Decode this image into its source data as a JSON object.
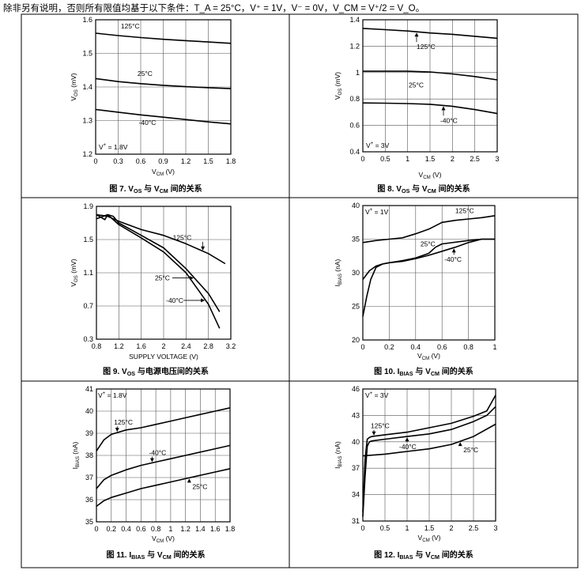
{
  "header": {
    "text": "除非另有说明，否则所有限值均基于以下条件：T_A = 25°C，V⁺ = 1V，V⁻ = 0V，V_CM = V⁺/2 = V_O。"
  },
  "chart_data": [
    {
      "type": "line",
      "caption": "图 7. V_OS 与 V_CM 间的关系",
      "xlabel": "V_CM (V)",
      "ylabel": "V_OS (mV)",
      "xlim": [
        0,
        1.8
      ],
      "ylim": [
        1.2,
        1.6
      ],
      "xticks": [
        "0",
        "0.3",
        "0.6",
        "0.9",
        "1.2",
        "1.5",
        "1.8"
      ],
      "yticks": [
        "1.2",
        "1.3",
        "1.4",
        "1.5",
        "1.6"
      ],
      "condition": "V⁺ = 1.8V",
      "series": [
        {
          "name": "125°C",
          "x": [
            0,
            0.3,
            0.6,
            0.9,
            1.2,
            1.5,
            1.8
          ],
          "y": [
            1.56,
            1.553,
            1.547,
            1.542,
            1.538,
            1.534,
            1.53
          ]
        },
        {
          "name": "25°C",
          "x": [
            0,
            0.3,
            0.6,
            0.9,
            1.2,
            1.5,
            1.8
          ],
          "y": [
            1.425,
            1.416,
            1.41,
            1.405,
            1.401,
            1.398,
            1.395
          ]
        },
        {
          "name": "-40°C",
          "x": [
            0,
            0.3,
            0.6,
            0.9,
            1.2,
            1.5,
            1.8
          ],
          "y": [
            1.333,
            1.325,
            1.317,
            1.31,
            1.303,
            1.296,
            1.29
          ]
        }
      ],
      "annotations": [
        {
          "text": "125°C",
          "series": 0
        },
        {
          "text": "25°C",
          "series": 1
        },
        {
          "text": "-40°C",
          "series": 2
        }
      ]
    },
    {
      "type": "line",
      "caption": "图 8. V_OS 与 V_CM 间的关系",
      "xlabel": "V_CM (V)",
      "ylabel": "V_OS (mV)",
      "xlim": [
        0,
        3
      ],
      "ylim": [
        0.4,
        1.4
      ],
      "xticks": [
        "0",
        "0.5",
        "1",
        "1.5",
        "2",
        "2.5",
        "3"
      ],
      "yticks": [
        "0.4",
        "0.6",
        "0.8",
        "1",
        "1.2",
        "1.4"
      ],
      "condition": "V⁺ = 3V",
      "series": [
        {
          "name": "125°C",
          "x": [
            0,
            0.5,
            1,
            1.5,
            2,
            2.5,
            3
          ],
          "y": [
            1.335,
            1.325,
            1.315,
            1.3,
            1.29,
            1.275,
            1.26
          ]
        },
        {
          "name": "25°C",
          "x": [
            0,
            0.5,
            1,
            1.5,
            2,
            2.5,
            3
          ],
          "y": [
            1.01,
            1.01,
            1.01,
            1.005,
            0.99,
            0.97,
            0.945
          ]
        },
        {
          "name": "-40°C",
          "x": [
            0,
            0.5,
            1,
            1.5,
            2,
            2.5,
            3
          ],
          "y": [
            0.77,
            0.768,
            0.765,
            0.76,
            0.745,
            0.72,
            0.69
          ]
        }
      ],
      "annotations": [
        {
          "text": "125°C",
          "series": 0
        },
        {
          "text": "25°C",
          "series": 1
        },
        {
          "text": "-40°C",
          "series": 2
        }
      ]
    },
    {
      "type": "line",
      "caption": "图 9. V_OS 与电源电压间的关系",
      "xlabel": "SUPPLY VOLTAGE (V)",
      "ylabel": "V_OS (mV)",
      "xlim": [
        0.8,
        3.2
      ],
      "ylim": [
        0.3,
        1.9
      ],
      "xticks": [
        "0.8",
        "1.2",
        "1.6",
        "2",
        "2.4",
        "2.8",
        "3.2"
      ],
      "yticks": [
        "0.3",
        "0.7",
        "1.1",
        "1.5",
        "1.9"
      ],
      "series": [
        {
          "name": "125°C",
          "x": [
            0.8,
            1,
            1.2,
            1.6,
            2,
            2.4,
            2.8,
            3.1
          ],
          "y": [
            1.8,
            1.78,
            1.72,
            1.62,
            1.55,
            1.45,
            1.33,
            1.21
          ]
        },
        {
          "name": "25°C",
          "x": [
            0.8,
            0.95,
            1,
            1.1,
            1.2,
            1.6,
            2,
            2.4,
            2.8,
            3.0
          ],
          "y": [
            1.8,
            1.74,
            1.8,
            1.78,
            1.7,
            1.55,
            1.4,
            1.15,
            0.85,
            0.63
          ]
        },
        {
          "name": "-40°C",
          "x": [
            0.8,
            1,
            1.2,
            1.6,
            2,
            2.4,
            2.8,
            3.0
          ],
          "y": [
            1.75,
            1.8,
            1.68,
            1.52,
            1.35,
            1.1,
            0.72,
            0.43
          ]
        }
      ],
      "annotations": [
        {
          "text": "125°C",
          "series": 0
        },
        {
          "text": "25°C",
          "series": 1
        },
        {
          "text": "-40°C",
          "series": 2
        }
      ]
    },
    {
      "type": "line",
      "caption": "图 10. I_BIAS 与 V_CM 间的关系",
      "xlabel": "V_CM (V)",
      "ylabel": "I_BIAS (nA)",
      "xlim": [
        0,
        1
      ],
      "ylim": [
        20,
        40
      ],
      "xticks": [
        "0",
        "0.2",
        "0.4",
        "0.6",
        "0.8",
        "1"
      ],
      "yticks": [
        "20",
        "25",
        "30",
        "35",
        "40"
      ],
      "condition": "V⁺ = 1V",
      "series": [
        {
          "name": "125°C",
          "x": [
            0,
            0.1,
            0.2,
            0.3,
            0.4,
            0.5,
            0.6,
            0.7,
            0.8,
            0.9,
            1
          ],
          "y": [
            34.5,
            34.8,
            35,
            35.2,
            35.8,
            36.5,
            37.5,
            37.8,
            38,
            38.2,
            38.5
          ]
        },
        {
          "name": "25°C",
          "x": [
            0,
            0.05,
            0.1,
            0.15,
            0.2,
            0.3,
            0.4,
            0.5,
            0.55,
            0.6,
            0.8,
            0.9,
            1
          ],
          "y": [
            29,
            30.3,
            31,
            31.3,
            31.5,
            31.8,
            32.2,
            32.9,
            33.8,
            34.3,
            34.8,
            35,
            35
          ]
        },
        {
          "name": "-40°C",
          "x": [
            0,
            0.03,
            0.06,
            0.1,
            0.15,
            0.2,
            0.3,
            0.4,
            0.5,
            0.6,
            0.7,
            0.8,
            0.9,
            1
          ],
          "y": [
            23.5,
            26.5,
            29,
            30.8,
            31.3,
            31.5,
            31.7,
            32.1,
            32.6,
            33.2,
            33.8,
            34.5,
            35,
            35
          ]
        }
      ],
      "annotations": [
        {
          "text": "125°C",
          "series": 0
        },
        {
          "text": "25°C",
          "series": 1
        },
        {
          "text": "-40°C",
          "series": 2
        }
      ]
    },
    {
      "type": "line",
      "caption": "图 11. I_BIAS 与 V_CM 间的关系",
      "xlabel": "V_CM (V)",
      "ylabel": "I_BIAS (nA)",
      "xlim": [
        0,
        1.8
      ],
      "ylim": [
        35,
        41
      ],
      "xticks": [
        "0",
        "0.2",
        "0.4",
        "0.6",
        "0.8",
        "1",
        "1.2",
        "1.4",
        "1.6",
        "1.8"
      ],
      "yticks": [
        "35",
        "36",
        "37",
        "38",
        "39",
        "40",
        "41"
      ],
      "condition": "V⁺ = 1.8V",
      "series": [
        {
          "name": "125°C",
          "x": [
            0,
            0.1,
            0.2,
            0.4,
            0.6,
            0.8,
            1,
            1.2,
            1.4,
            1.6,
            1.8
          ],
          "y": [
            38.2,
            38.7,
            38.95,
            39.15,
            39.25,
            39.4,
            39.55,
            39.7,
            39.85,
            40,
            40.15
          ]
        },
        {
          "name": "-40°C",
          "x": [
            0,
            0.1,
            0.2,
            0.4,
            0.6,
            0.8,
            1,
            1.2,
            1.4,
            1.6,
            1.8
          ],
          "y": [
            36.5,
            36.9,
            37.1,
            37.35,
            37.55,
            37.7,
            37.85,
            38,
            38.15,
            38.3,
            38.45
          ]
        },
        {
          "name": "25°C",
          "x": [
            0,
            0.1,
            0.2,
            0.4,
            0.6,
            0.8,
            1,
            1.2,
            1.4,
            1.6,
            1.8
          ],
          "y": [
            35.7,
            35.95,
            36.1,
            36.3,
            36.5,
            36.65,
            36.8,
            36.95,
            37.1,
            37.25,
            37.4
          ]
        }
      ],
      "annotations": [
        {
          "text": "125°C",
          "series": 0
        },
        {
          "text": "-40°C",
          "series": 1
        },
        {
          "text": "25°C",
          "series": 2
        }
      ]
    },
    {
      "type": "line",
      "caption": "图 12. I_BIAS 与 V_CM 间的关系",
      "xlabel": "V_CM (V)",
      "ylabel": "I_BIAS (nA)",
      "xlim": [
        0,
        3
      ],
      "ylim": [
        31,
        46
      ],
      "xticks": [
        "0",
        "0.5",
        "1",
        "1.5",
        "2",
        "2.5",
        "3"
      ],
      "yticks": [
        "31",
        "34",
        "37",
        "40",
        "43",
        "46"
      ],
      "condition": "V⁺ = 3V",
      "series": [
        {
          "name": "125°C",
          "x": [
            0,
            0.05,
            0.1,
            0.15,
            0.2,
            0.5,
            1,
            1.5,
            2,
            2.5,
            2.8,
            3
          ],
          "y": [
            32,
            38,
            40.3,
            40.5,
            40.6,
            40.8,
            41.1,
            41.6,
            42.1,
            42.9,
            43.5,
            45.3
          ]
        },
        {
          "name": "-40°C",
          "x": [
            0,
            0.05,
            0.1,
            0.15,
            0.2,
            0.5,
            1,
            1.5,
            2,
            2.5,
            2.8,
            3
          ],
          "y": [
            31.5,
            36,
            39.5,
            40,
            40.1,
            40.3,
            40.6,
            40.9,
            41.4,
            42.3,
            43,
            44
          ]
        },
        {
          "name": "25°C",
          "x": [
            0,
            0.5,
            1,
            1.5,
            2,
            2.5,
            3
          ],
          "y": [
            38.4,
            38.6,
            38.9,
            39.2,
            39.7,
            40.6,
            42
          ]
        }
      ],
      "annotations": [
        {
          "text": "125°C",
          "series": 0
        },
        {
          "text": "-40°C",
          "series": 1
        },
        {
          "text": "25°C",
          "series": 2
        }
      ]
    }
  ]
}
